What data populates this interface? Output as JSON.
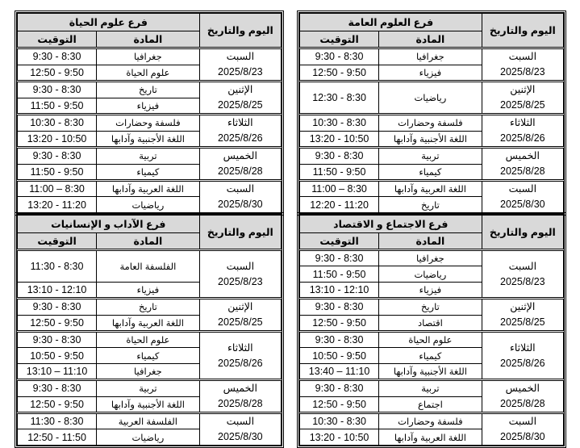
{
  "headers": {
    "day_date": "اليوم والتاريخ",
    "subject": "المادة",
    "time": "التوقيت"
  },
  "tables": [
    {
      "branch": "فرع العلوم العامة",
      "groups": [
        {
          "day": "السبت",
          "date": "2025/8/23",
          "rows": [
            {
              "subject": "جغرافيا",
              "time": "9:30 - 8:30"
            },
            {
              "subject": "فيزياء",
              "time": "12:50 - 9:50"
            }
          ]
        },
        {
          "day": "الإثنين",
          "date": "2025/8/25",
          "rows": [
            {
              "subject": "رياضيات",
              "time": "12:30 - 8:30",
              "span": 2
            }
          ]
        },
        {
          "day": "الثلاثاء",
          "date": "2025/8/26",
          "rows": [
            {
              "subject": "فلسفة وحضارات",
              "time": "10:30 - 8:30"
            },
            {
              "subject": "اللغة الأجنبية وآدابها",
              "time": "13:20 - 10:50"
            }
          ]
        },
        {
          "day": "الخميس",
          "date": "2025/8/28",
          "rows": [
            {
              "subject": "تربية",
              "time": "9:30 - 8:30"
            },
            {
              "subject": "كيمياء",
              "time": "11:50 - 9:50"
            }
          ]
        },
        {
          "day": "السبت",
          "date": "2025/8/30",
          "rows": [
            {
              "subject": "اللغة العربية وآدابها",
              "time": "11:00 – 8:30"
            },
            {
              "subject": "تاريخ",
              "time": "12:20 - 11:20"
            }
          ]
        }
      ]
    },
    {
      "branch": "فرع علوم الحياة",
      "groups": [
        {
          "day": "السبت",
          "date": "2025/8/23",
          "rows": [
            {
              "subject": "جغرافيا",
              "time": "9:30 - 8:30"
            },
            {
              "subject": "علوم الحياة",
              "time": "12:50 - 9:50"
            }
          ]
        },
        {
          "day": "الإثنين",
          "date": "2025/8/25",
          "rows": [
            {
              "subject": "تاريخ",
              "time": "9:30 - 8:30"
            },
            {
              "subject": "فيزياء",
              "time": "11:50 - 9:50"
            }
          ]
        },
        {
          "day": "الثلاثاء",
          "date": "2025/8/26",
          "rows": [
            {
              "subject": "فلسفة وحضارات",
              "time": "10:30 - 8:30"
            },
            {
              "subject": "اللغة الأجنبية وآدابها",
              "time": "13:20 - 10:50"
            }
          ]
        },
        {
          "day": "الخميس",
          "date": "2025/8/28",
          "rows": [
            {
              "subject": "تربية",
              "time": "9:30 - 8:30"
            },
            {
              "subject": "كيمياء",
              "time": "11:50 - 9:50"
            }
          ]
        },
        {
          "day": "السبت",
          "date": "2025/8/30",
          "rows": [
            {
              "subject": "اللغة العربية وآدابها",
              "time": "11:00 – 8:30"
            },
            {
              "subject": "رياضيات",
              "time": "13:20 - 11:20"
            }
          ]
        }
      ]
    },
    {
      "branch": "فرع الاجتماع و الاقتصاد",
      "groups": [
        {
          "day": "السبت",
          "date": "2025/8/23",
          "rows": [
            {
              "subject": "جغرافيا",
              "time": "9:30 - 8:30"
            },
            {
              "subject": "رياضيات",
              "time": "11:50 - 9:50"
            },
            {
              "subject": "فيزياء",
              "time": "13:10 - 12:10"
            }
          ]
        },
        {
          "day": "الإثنين",
          "date": "2025/8/25",
          "rows": [
            {
              "subject": "تاريخ",
              "time": "9:30 - 8:30"
            },
            {
              "subject": "اقتصاد",
              "time": "12:50 - 9:50"
            }
          ]
        },
        {
          "day": "الثلاثاء",
          "date": "2025/8/26",
          "rows": [
            {
              "subject": "علوم الحياة",
              "time": "9:30 - 8:30"
            },
            {
              "subject": "كيمياء",
              "time": "10:50 - 9:50"
            },
            {
              "subject": "اللغة الأجنبية وآدابها",
              "time": "13:40 – 11:10"
            }
          ]
        },
        {
          "day": "الخميس",
          "date": "2025/8/28",
          "rows": [
            {
              "subject": "تربية",
              "time": "9:30 - 8:30"
            },
            {
              "subject": "اجتماع",
              "time": "12:50 - 9:50"
            }
          ]
        },
        {
          "day": "السبت",
          "date": "2025/8/30",
          "rows": [
            {
              "subject": "فلسفة وحضارات",
              "time": "10:30 - 8:30"
            },
            {
              "subject": "اللغة العربية وآدابها",
              "time": "13:20 - 10:50"
            }
          ]
        }
      ]
    },
    {
      "branch": "فرع الآداب و الإنسانيات",
      "groups": [
        {
          "day": "السبت",
          "date": "2025/8/23",
          "rows": [
            {
              "subject": "الفلسفة العامة",
              "time": "11:30 - 8:30",
              "span": 2
            },
            {
              "subject": "فيزياء",
              "time": "13:10 - 12:10"
            }
          ]
        },
        {
          "day": "الإثنين",
          "date": "2025/8/25",
          "rows": [
            {
              "subject": "تاريخ",
              "time": "9:30 - 8:30"
            },
            {
              "subject": "اللغة العربية وآدابها",
              "time": "12:50 - 9:50"
            }
          ]
        },
        {
          "day": "الثلاثاء",
          "date": "2025/8/26",
          "rows": [
            {
              "subject": "علوم الحياة",
              "time": "9:30 - 8:30"
            },
            {
              "subject": "كيمياء",
              "time": "10:50 - 9:50"
            },
            {
              "subject": "جغرافيا",
              "time": "13:10 – 11:10"
            }
          ]
        },
        {
          "day": "الخميس",
          "date": "2025/8/28",
          "rows": [
            {
              "subject": "تربية",
              "time": "9:30 - 8:30"
            },
            {
              "subject": "اللغة الأجنبية وآدابها",
              "time": "12:50 - 9:50"
            }
          ]
        },
        {
          "day": "السبت",
          "date": "2025/8/30",
          "rows": [
            {
              "subject": "الفلسفة العربية",
              "time": "11:30 - 8:30"
            },
            {
              "subject": "رياضيات",
              "time": "12:50 - 11:50"
            }
          ]
        }
      ]
    }
  ]
}
